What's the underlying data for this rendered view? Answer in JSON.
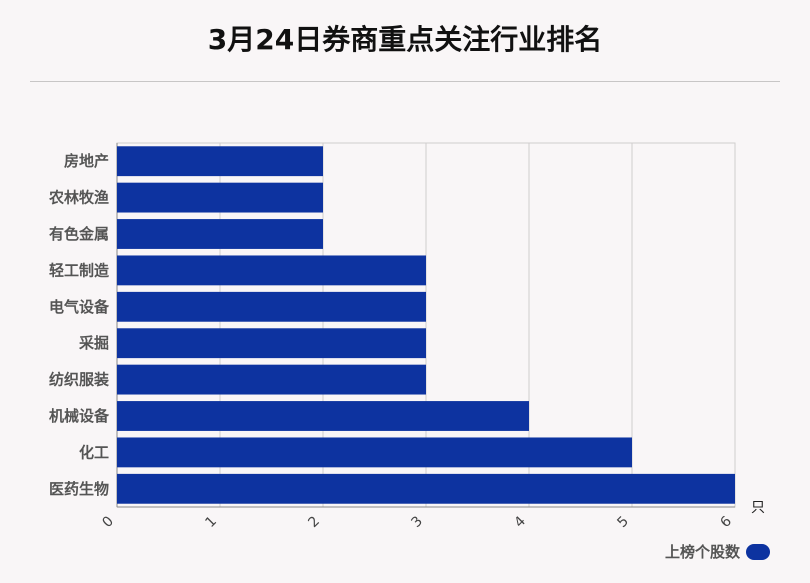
{
  "title": "3月24日券商重点关注行业排名",
  "chart_data": {
    "type": "bar",
    "orientation": "horizontal",
    "title": "3月24日券商重点关注行业排名",
    "categories": [
      "房地产",
      "农林牧渔",
      "有色金属",
      "轻工制造",
      "电气设备",
      "采掘",
      "纺织服装",
      "机械设备",
      "化工",
      "医药生物"
    ],
    "series": [
      {
        "name": "上榜个股数",
        "values": [
          2,
          2,
          2,
          3,
          3,
          3,
          3,
          4,
          5,
          6
        ]
      }
    ],
    "xlim": [
      0,
      6
    ],
    "xticks": [
      "0",
      "1",
      "2",
      "3",
      "4",
      "5",
      "6"
    ],
    "xunit": "只",
    "grid": true,
    "legend_position": "bottom-right",
    "bar_color": "#0d33a0"
  }
}
